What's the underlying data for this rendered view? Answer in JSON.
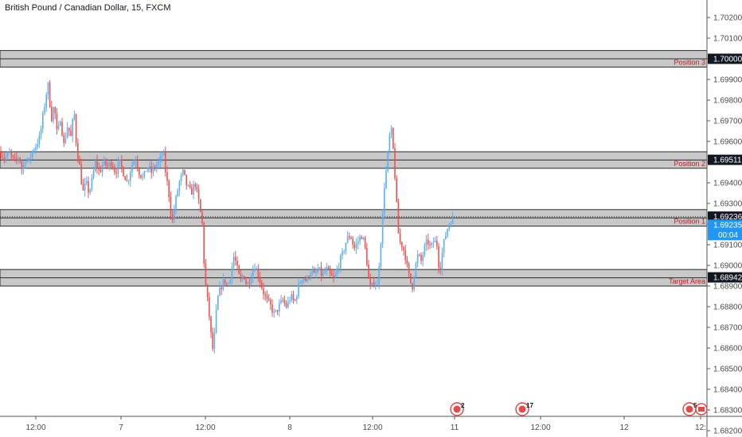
{
  "symbol": {
    "title": "British Pound / Canadian Dollar, 15, FXCM"
  },
  "colors": {
    "up": "#5aaef5",
    "down": "#f0504f",
    "zone_fill": "#c8c8c8",
    "zone_border": "#2a2a2a",
    "zone_label": "#b22222",
    "axis_text": "#4a4a4a",
    "tag_dark": "#131722",
    "tag_price": "#2196f3",
    "event_red": "#e24b4b"
  },
  "chart_data": {
    "type": "candlestick",
    "ylim": [
      1.6812,
      1.7026
    ],
    "y_ticks": [
      "1.70200",
      "1.70100",
      "1.70000",
      "1.69900",
      "1.69800",
      "1.69700",
      "1.69600",
      "1.69500",
      "1.69400",
      "1.69300",
      "1.69200",
      "1.69100",
      "1.69000",
      "1.68900",
      "1.68800",
      "1.68700",
      "1.68600",
      "1.68500",
      "1.68400",
      "1.68300",
      "1.68200"
    ],
    "x_labels": [
      "12:00",
      "7",
      "12:00",
      "8",
      "12:00",
      "11",
      "12:00",
      "12",
      "12:"
    ],
    "zones": [
      {
        "label": "Position 3",
        "low": 1.6996,
        "high": 1.7004,
        "price_tag": "1.70000"
      },
      {
        "label": "Position 2",
        "low": 1.6947,
        "high": 1.6955,
        "price_tag": "1.69511"
      },
      {
        "label": "Position 1",
        "low": 1.6919,
        "high": 1.6927,
        "price_tag": "1.69236"
      },
      {
        "label": "Target Area",
        "low": 1.689,
        "high": 1.6898,
        "price_tag": "1.68942"
      }
    ],
    "current_price": {
      "value": 1.69235,
      "label": "1.69235",
      "countdown": "00:04"
    },
    "events": [
      {
        "label": "2"
      },
      {
        "label": "17"
      },
      {
        "label": "5"
      }
    ],
    "path": [
      [
        0,
        1.6955
      ],
      [
        6,
        1.6952
      ],
      [
        12,
        1.6954
      ],
      [
        18,
        1.695
      ],
      [
        24,
        1.6953
      ],
      [
        28,
        1.6946
      ],
      [
        32,
        1.6952
      ],
      [
        36,
        1.695
      ],
      [
        40,
        1.6955
      ],
      [
        45,
        1.6958
      ],
      [
        50,
        1.6962
      ],
      [
        55,
        1.6975
      ],
      [
        58,
        1.6983
      ],
      [
        61,
        1.6988
      ],
      [
        64,
        1.697
      ],
      [
        68,
        1.6978
      ],
      [
        72,
        1.6962
      ],
      [
        76,
        1.6972
      ],
      [
        80,
        1.6958
      ],
      [
        85,
        1.6968
      ],
      [
        89,
        1.6962
      ],
      [
        93,
        1.6975
      ],
      [
        96,
        1.6958
      ],
      [
        100,
        1.6948
      ],
      [
        104,
        1.6935
      ],
      [
        108,
        1.694
      ],
      [
        112,
        1.6935
      ],
      [
        116,
        1.6942
      ],
      [
        120,
        1.695
      ],
      [
        125,
        1.6945
      ],
      [
        130,
        1.695
      ],
      [
        135,
        1.6948
      ],
      [
        140,
        1.695
      ],
      [
        145,
        1.6945
      ],
      [
        150,
        1.695
      ],
      [
        155,
        1.6945
      ],
      [
        160,
        1.694
      ],
      [
        165,
        1.6948
      ],
      [
        170,
        1.6952
      ],
      [
        175,
        1.6945
      ],
      [
        180,
        1.6942
      ],
      [
        185,
        1.6948
      ],
      [
        190,
        1.6945
      ],
      [
        195,
        1.6948
      ],
      [
        200,
        1.695
      ],
      [
        205,
        1.6955
      ],
      [
        208,
        1.6945
      ],
      [
        212,
        1.6935
      ],
      [
        216,
        1.692
      ],
      [
        220,
        1.693
      ],
      [
        225,
        1.694
      ],
      [
        230,
        1.6945
      ],
      [
        235,
        1.6938
      ],
      [
        240,
        1.6935
      ],
      [
        245,
        1.694
      ],
      [
        250,
        1.693
      ],
      [
        254,
        1.692
      ],
      [
        257,
        1.6895
      ],
      [
        260,
        1.6885
      ],
      [
        263,
        1.6875
      ],
      [
        266,
        1.6862
      ],
      [
        268,
        1.6858
      ],
      [
        271,
        1.6875
      ],
      [
        274,
        1.6885
      ],
      [
        278,
        1.689
      ],
      [
        282,
        1.6893
      ],
      [
        286,
        1.689
      ],
      [
        290,
        1.6896
      ],
      [
        294,
        1.6905
      ],
      [
        298,
        1.6898
      ],
      [
        302,
        1.6892
      ],
      [
        306,
        1.6896
      ],
      [
        310,
        1.689
      ],
      [
        315,
        1.6895
      ],
      [
        320,
        1.69
      ],
      [
        325,
        1.6895
      ],
      [
        330,
        1.6888
      ],
      [
        335,
        1.6883
      ],
      [
        340,
        1.688
      ],
      [
        345,
        1.6876
      ],
      [
        350,
        1.688
      ],
      [
        355,
        1.6883
      ],
      [
        360,
        1.688
      ],
      [
        365,
        1.6885
      ],
      [
        370,
        1.6882
      ],
      [
        375,
        1.689
      ],
      [
        380,
        1.6895
      ],
      [
        385,
        1.6892
      ],
      [
        390,
        1.6898
      ],
      [
        395,
        1.6895
      ],
      [
        400,
        1.6898
      ],
      [
        405,
        1.6895
      ],
      [
        410,
        1.6898
      ],
      [
        415,
        1.6895
      ],
      [
        420,
        1.6893
      ],
      [
        425,
        1.69
      ],
      [
        430,
        1.6905
      ],
      [
        435,
        1.6912
      ],
      [
        440,
        1.6915
      ],
      [
        445,
        1.6908
      ],
      [
        450,
        1.6912
      ],
      [
        455,
        1.6915
      ],
      [
        460,
        1.6905
      ],
      [
        463,
        1.6893
      ],
      [
        466,
        1.6888
      ],
      [
        470,
        1.6893
      ],
      [
        474,
        1.689
      ],
      [
        477,
        1.6905
      ],
      [
        480,
        1.692
      ],
      [
        483,
        1.694
      ],
      [
        486,
        1.6948
      ],
      [
        489,
        1.6962
      ],
      [
        492,
        1.6965
      ],
      [
        495,
        1.695
      ],
      [
        498,
        1.693
      ],
      [
        501,
        1.6912
      ],
      [
        505,
        1.691
      ],
      [
        509,
        1.6905
      ],
      [
        512,
        1.6898
      ],
      [
        515,
        1.6892
      ],
      [
        518,
        1.689
      ],
      [
        521,
        1.6898
      ],
      [
        525,
        1.6905
      ],
      [
        529,
        1.6902
      ],
      [
        533,
        1.6908
      ],
      [
        537,
        1.6912
      ],
      [
        541,
        1.6908
      ],
      [
        545,
        1.6912
      ],
      [
        549,
        1.691
      ],
      [
        552,
        1.6896
      ],
      [
        555,
        1.6905
      ],
      [
        558,
        1.6912
      ],
      [
        562,
        1.6918
      ],
      [
        566,
        1.6922
      ],
      [
        570,
        1.69235
      ]
    ]
  }
}
